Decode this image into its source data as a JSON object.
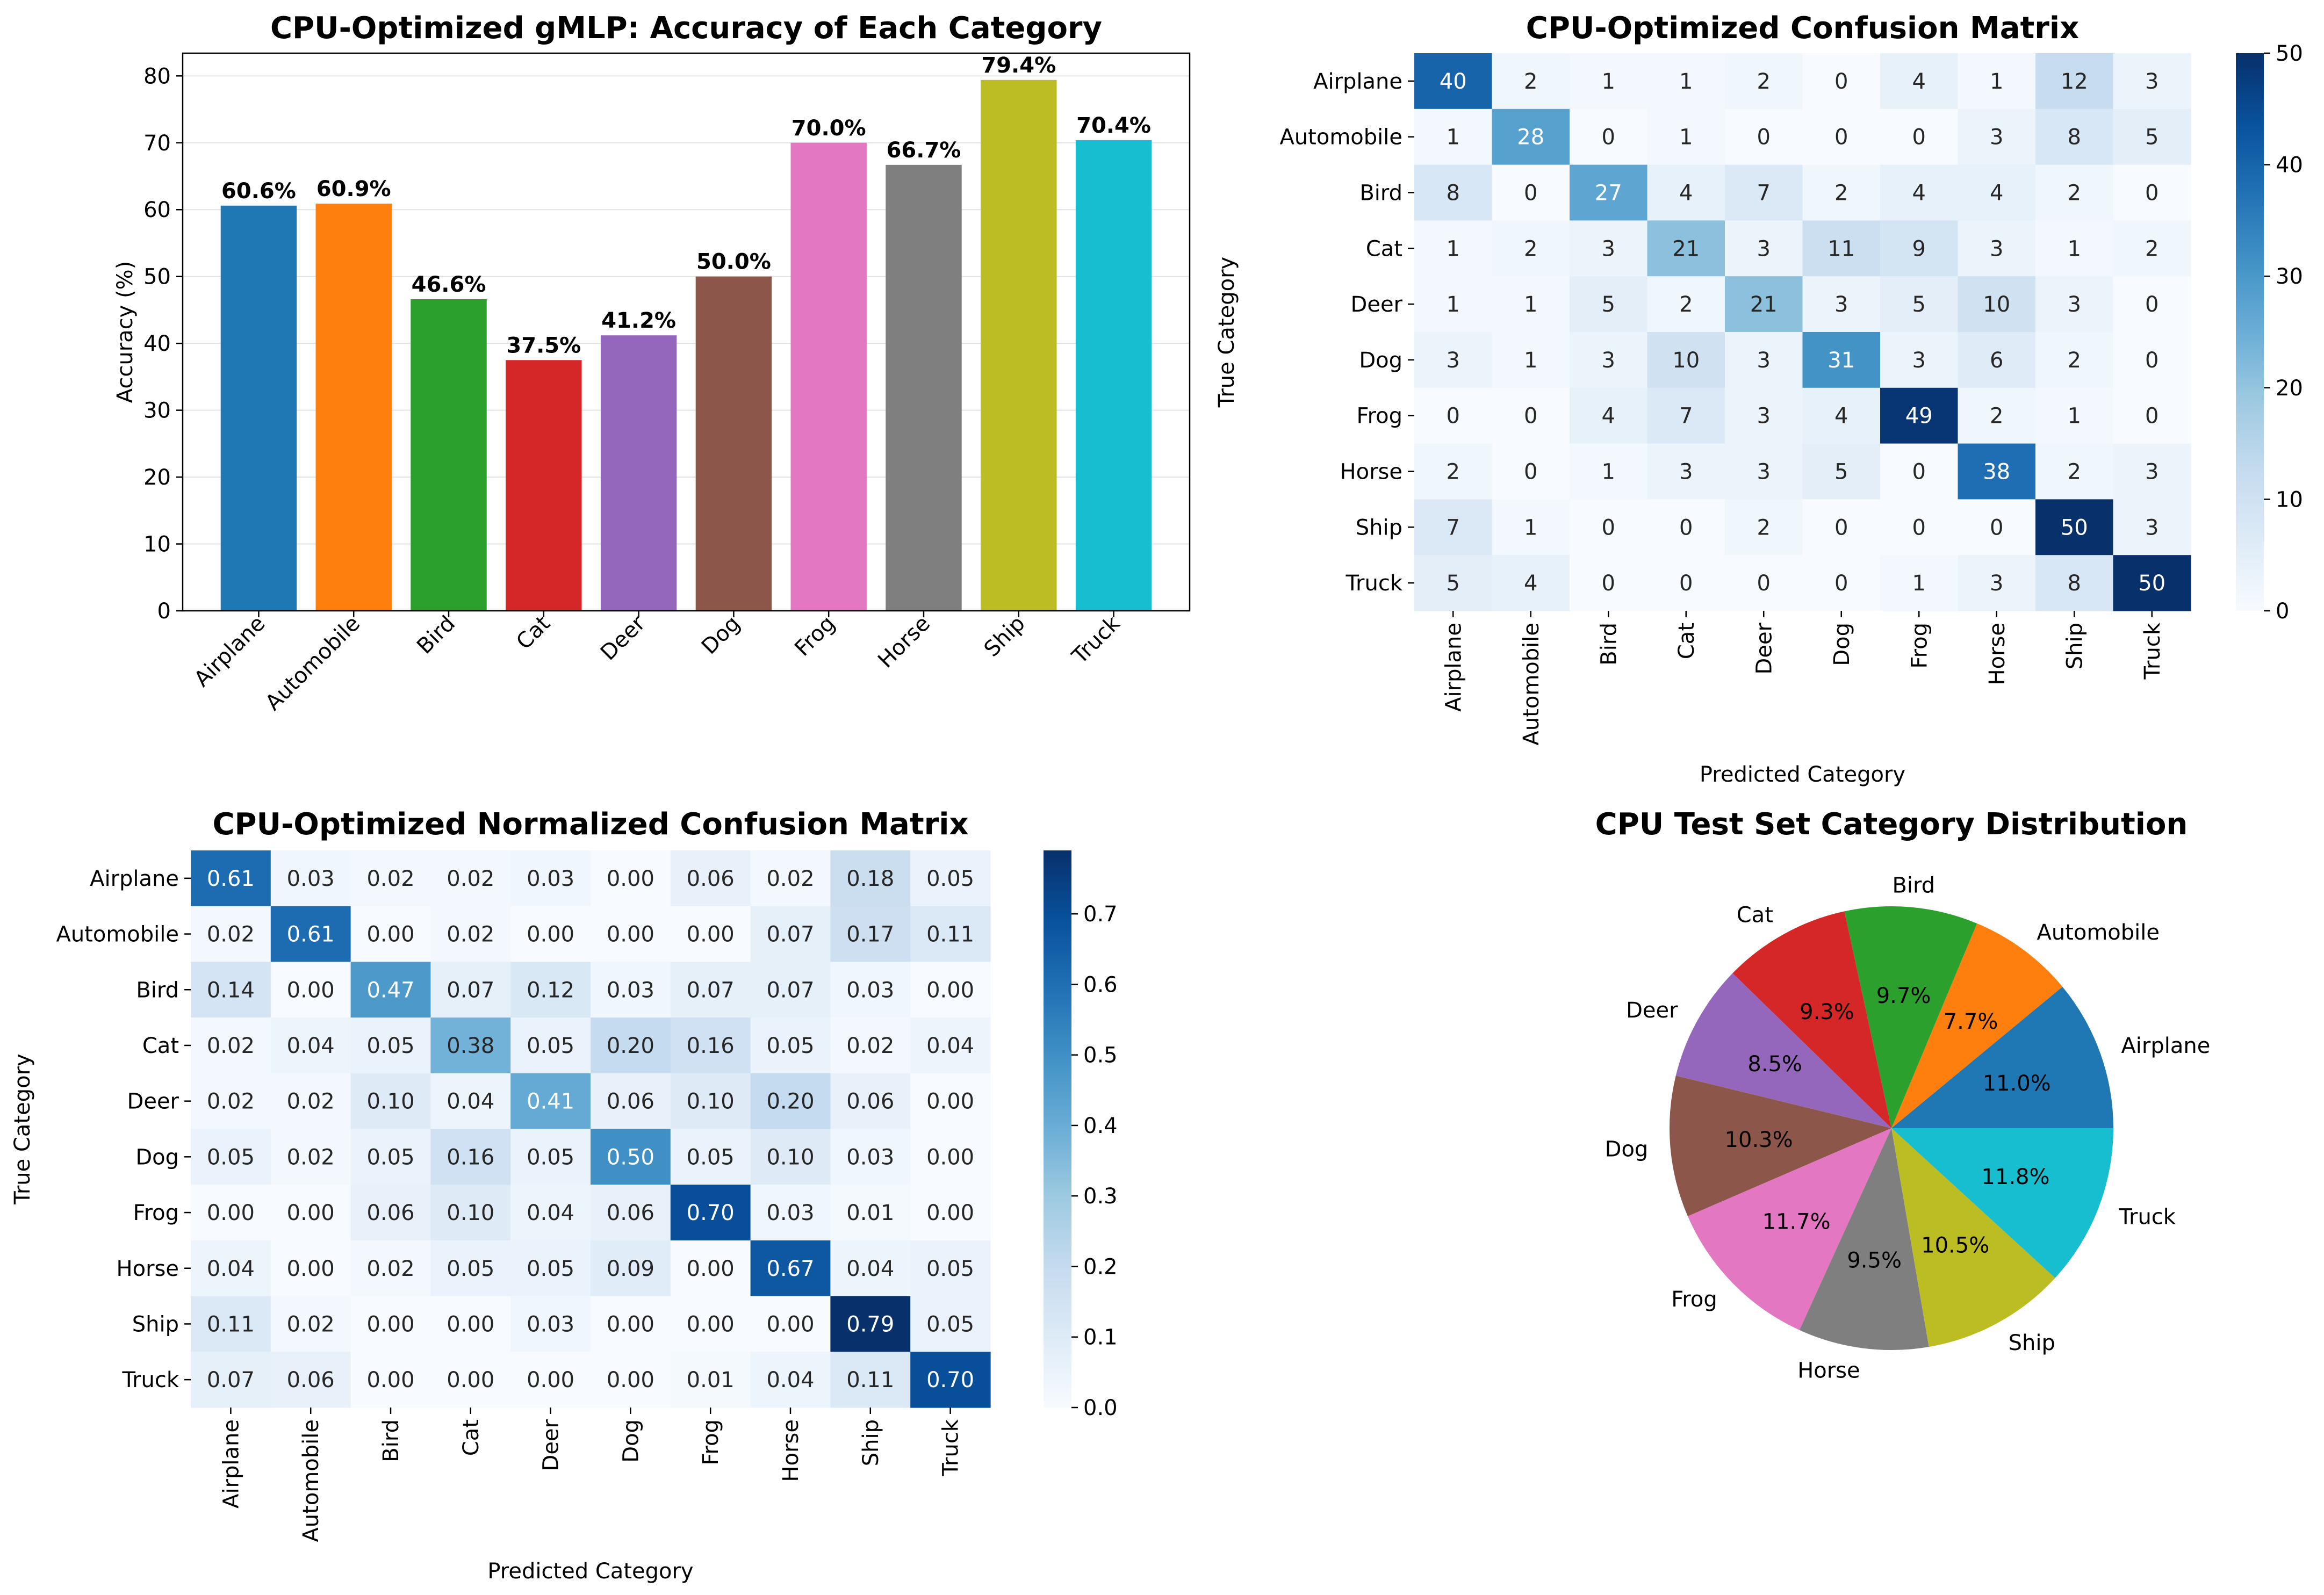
{
  "chart_data": [
    {
      "type": "bar",
      "title": "CPU-Optimized gMLP: Accuracy of Each Category",
      "xlabel": "",
      "ylabel": "Accuracy (%)",
      "ylim": [
        0,
        83.4
      ],
      "yticks": [
        0,
        10,
        20,
        30,
        40,
        50,
        60,
        70,
        80
      ],
      "grid": "horizontal",
      "categories": [
        "Airplane",
        "Automobile",
        "Bird",
        "Cat",
        "Deer",
        "Dog",
        "Frog",
        "Horse",
        "Ship",
        "Truck"
      ],
      "values": [
        60.6,
        60.9,
        46.6,
        37.5,
        41.2,
        50.0,
        70.0,
        66.7,
        79.4,
        70.4
      ],
      "value_labels": [
        "60.6%",
        "60.9%",
        "46.6%",
        "37.5%",
        "41.2%",
        "50.0%",
        "70.0%",
        "66.7%",
        "79.4%",
        "70.4%"
      ],
      "colors": [
        "#1f77b4",
        "#ff7f0e",
        "#2ca02c",
        "#d62728",
        "#9467bd",
        "#8c564b",
        "#e377c2",
        "#7f7f7f",
        "#bcbd22",
        "#17becf"
      ]
    },
    {
      "type": "heatmap",
      "title": "CPU-Optimized Confusion Matrix",
      "xlabel": "Predicted Category",
      "ylabel": "True Category",
      "colormap": "Blues",
      "vmin": 0,
      "vmax": 50,
      "colorbar_ticks": [
        "0",
        "10",
        "20",
        "30",
        "40",
        "50"
      ],
      "labels": [
        "Airplane",
        "Automobile",
        "Bird",
        "Cat",
        "Deer",
        "Dog",
        "Frog",
        "Horse",
        "Ship",
        "Truck"
      ],
      "matrix": [
        [
          40,
          2,
          1,
          1,
          2,
          0,
          4,
          1,
          12,
          3
        ],
        [
          1,
          28,
          0,
          1,
          0,
          0,
          0,
          3,
          8,
          5
        ],
        [
          8,
          0,
          27,
          4,
          7,
          2,
          4,
          4,
          2,
          0
        ],
        [
          1,
          2,
          3,
          21,
          3,
          11,
          9,
          3,
          1,
          2
        ],
        [
          1,
          1,
          5,
          2,
          21,
          3,
          5,
          10,
          3,
          0
        ],
        [
          3,
          1,
          3,
          10,
          3,
          31,
          3,
          6,
          2,
          0
        ],
        [
          0,
          0,
          4,
          7,
          3,
          4,
          49,
          2,
          1,
          0
        ],
        [
          2,
          0,
          1,
          3,
          3,
          5,
          0,
          38,
          2,
          3
        ],
        [
          7,
          1,
          0,
          0,
          2,
          0,
          0,
          0,
          50,
          3
        ],
        [
          5,
          4,
          0,
          0,
          0,
          0,
          1,
          3,
          8,
          50
        ]
      ]
    },
    {
      "type": "heatmap",
      "title": "CPU-Optimized Normalized Confusion Matrix",
      "xlabel": "Predicted Category",
      "ylabel": "True Category",
      "colormap": "Blues",
      "vmin": 0,
      "vmax": 0.79,
      "colorbar_ticks": [
        "0.0",
        "0.1",
        "0.2",
        "0.3",
        "0.4",
        "0.5",
        "0.6",
        "0.7"
      ],
      "labels": [
        "Airplane",
        "Automobile",
        "Bird",
        "Cat",
        "Deer",
        "Dog",
        "Frog",
        "Horse",
        "Ship",
        "Truck"
      ],
      "matrix": [
        [
          "0.61",
          "0.03",
          "0.02",
          "0.02",
          "0.03",
          "0.00",
          "0.06",
          "0.02",
          "0.18",
          "0.05"
        ],
        [
          "0.02",
          "0.61",
          "0.00",
          "0.02",
          "0.00",
          "0.00",
          "0.00",
          "0.07",
          "0.17",
          "0.11"
        ],
        [
          "0.14",
          "0.00",
          "0.47",
          "0.07",
          "0.12",
          "0.03",
          "0.07",
          "0.07",
          "0.03",
          "0.00"
        ],
        [
          "0.02",
          "0.04",
          "0.05",
          "0.38",
          "0.05",
          "0.20",
          "0.16",
          "0.05",
          "0.02",
          "0.04"
        ],
        [
          "0.02",
          "0.02",
          "0.10",
          "0.04",
          "0.41",
          "0.06",
          "0.10",
          "0.20",
          "0.06",
          "0.00"
        ],
        [
          "0.05",
          "0.02",
          "0.05",
          "0.16",
          "0.05",
          "0.50",
          "0.05",
          "0.10",
          "0.03",
          "0.00"
        ],
        [
          "0.00",
          "0.00",
          "0.06",
          "0.10",
          "0.04",
          "0.06",
          "0.70",
          "0.03",
          "0.01",
          "0.00"
        ],
        [
          "0.04",
          "0.00",
          "0.02",
          "0.05",
          "0.05",
          "0.09",
          "0.00",
          "0.67",
          "0.04",
          "0.05"
        ],
        [
          "0.11",
          "0.02",
          "0.00",
          "0.00",
          "0.03",
          "0.00",
          "0.00",
          "0.00",
          "0.79",
          "0.05"
        ],
        [
          "0.07",
          "0.06",
          "0.00",
          "0.00",
          "0.00",
          "0.00",
          "0.01",
          "0.04",
          "0.11",
          "0.70"
        ]
      ]
    },
    {
      "type": "pie",
      "title": "CPU Test Set Category Distribution",
      "labels": [
        "Airplane",
        "Automobile",
        "Bird",
        "Cat",
        "Deer",
        "Dog",
        "Frog",
        "Horse",
        "Ship",
        "Truck"
      ],
      "values": [
        11.0,
        7.7,
        9.7,
        9.3,
        8.5,
        10.3,
        11.7,
        9.5,
        10.5,
        11.8
      ],
      "value_labels": [
        "11.0%",
        "7.7%",
        "9.7%",
        "9.3%",
        "8.5%",
        "10.3%",
        "11.7%",
        "9.5%",
        "10.5%",
        "11.8%"
      ],
      "colors": [
        "#1f77b4",
        "#ff7f0e",
        "#2ca02c",
        "#d62728",
        "#9467bd",
        "#8c564b",
        "#e377c2",
        "#7f7f7f",
        "#bcbd22",
        "#17becf"
      ]
    }
  ]
}
